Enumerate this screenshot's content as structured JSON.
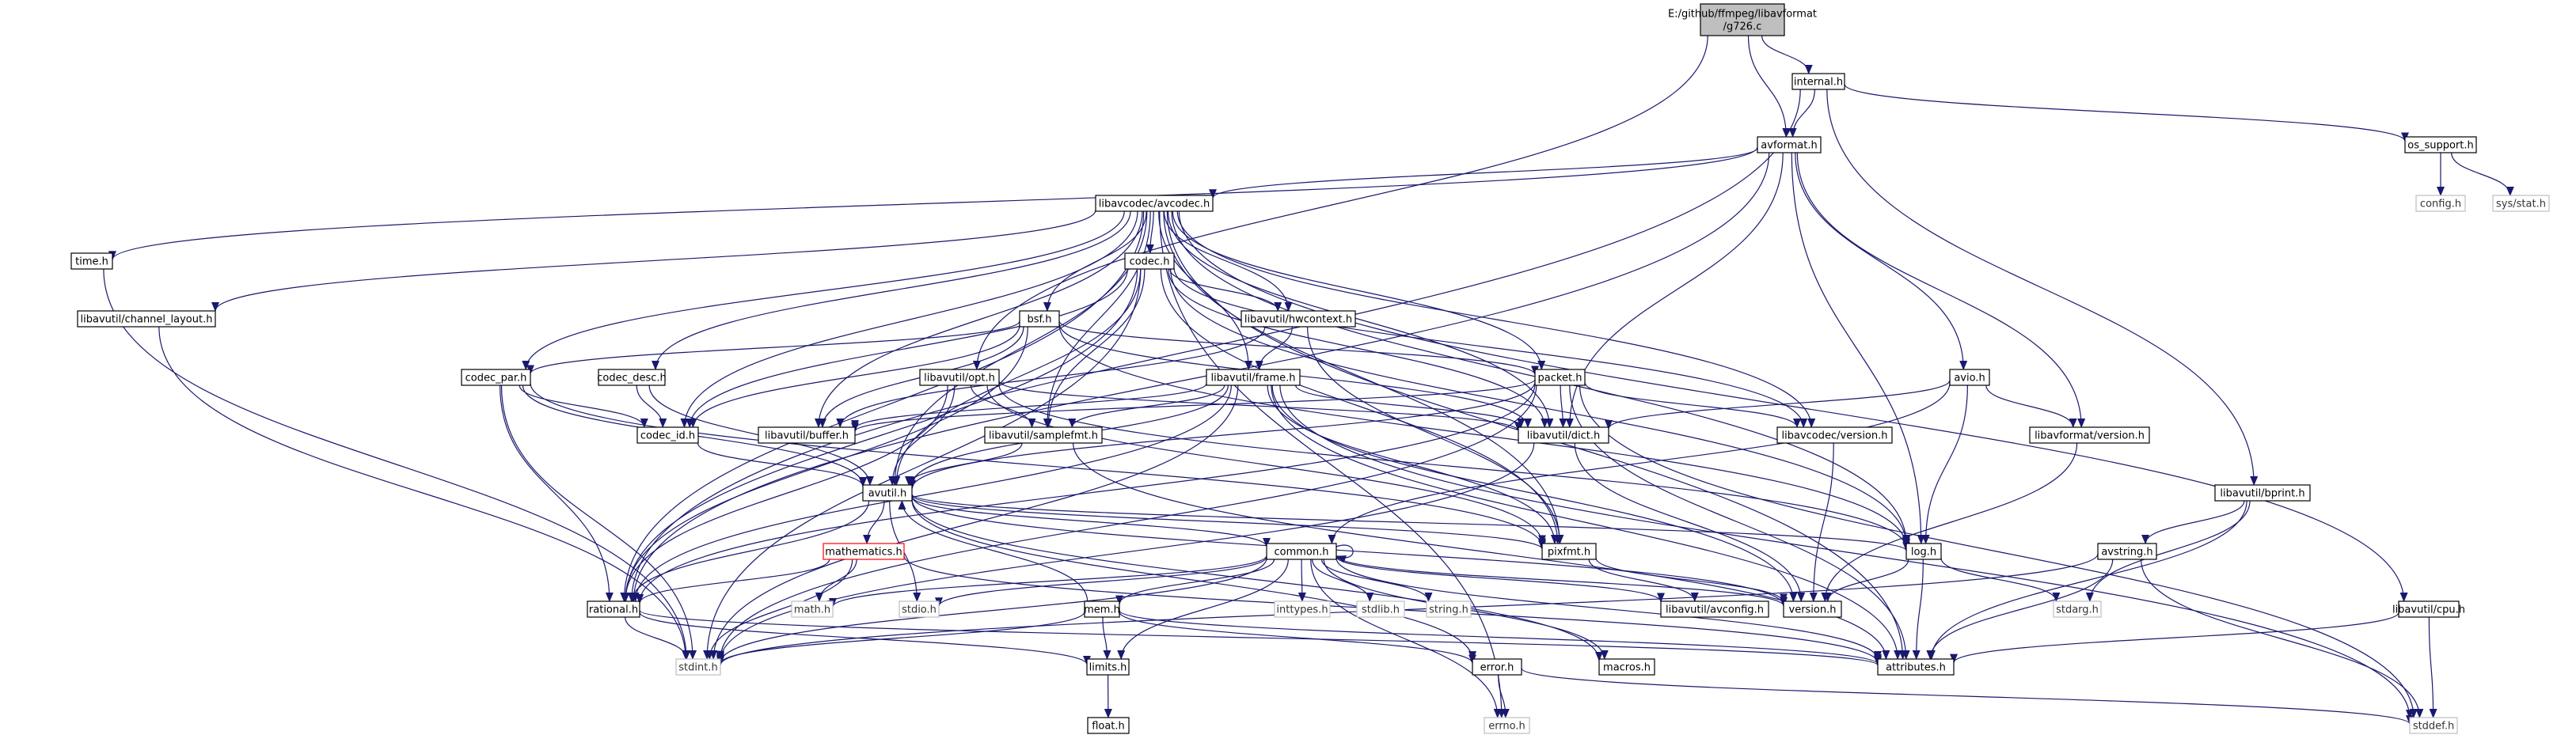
{
  "graph": {
    "nodes": [
      {
        "id": "root",
        "lines": [
          "E:/github/ffmpeg/libavformat",
          "/g726.c"
        ],
        "style": "root"
      },
      {
        "id": "internal",
        "lines": [
          "internal.h"
        ],
        "style": "normal"
      },
      {
        "id": "avformat",
        "lines": [
          "avformat.h"
        ],
        "style": "normal"
      },
      {
        "id": "os_support",
        "lines": [
          "os_support.h"
        ],
        "style": "normal"
      },
      {
        "id": "config",
        "lines": [
          "config.h"
        ],
        "style": "missing"
      },
      {
        "id": "sys_stat",
        "lines": [
          "sys/stat.h"
        ],
        "style": "missing"
      },
      {
        "id": "avcodec",
        "lines": [
          "libavcodec/avcodec.h"
        ],
        "style": "normal"
      },
      {
        "id": "time",
        "lines": [
          "time.h"
        ],
        "style": "normal"
      },
      {
        "id": "channel_layout",
        "lines": [
          "libavutil/channel_layout.h"
        ],
        "style": "normal"
      },
      {
        "id": "codec",
        "lines": [
          "codec.h"
        ],
        "style": "normal"
      },
      {
        "id": "bsf",
        "lines": [
          "bsf.h"
        ],
        "style": "normal"
      },
      {
        "id": "hwcontext",
        "lines": [
          "libavutil/hwcontext.h"
        ],
        "style": "normal"
      },
      {
        "id": "codec_par",
        "lines": [
          "codec_par.h"
        ],
        "style": "normal"
      },
      {
        "id": "codec_desc",
        "lines": [
          "codec_desc.h"
        ],
        "style": "normal"
      },
      {
        "id": "opt",
        "lines": [
          "libavutil/opt.h"
        ],
        "style": "normal"
      },
      {
        "id": "frame",
        "lines": [
          "libavutil/frame.h"
        ],
        "style": "normal"
      },
      {
        "id": "packet",
        "lines": [
          "packet.h"
        ],
        "style": "normal"
      },
      {
        "id": "avio",
        "lines": [
          "avio.h"
        ],
        "style": "normal"
      },
      {
        "id": "codec_id",
        "lines": [
          "codec_id.h"
        ],
        "style": "normal"
      },
      {
        "id": "buffer",
        "lines": [
          "libavutil/buffer.h"
        ],
        "style": "normal"
      },
      {
        "id": "samplefmt",
        "lines": [
          "libavutil/samplefmt.h"
        ],
        "style": "normal"
      },
      {
        "id": "dict",
        "lines": [
          "libavutil/dict.h"
        ],
        "style": "normal"
      },
      {
        "id": "avcodec_version",
        "lines": [
          "libavcodec/version.h"
        ],
        "style": "normal"
      },
      {
        "id": "avformat_version",
        "lines": [
          "libavformat/version.h"
        ],
        "style": "normal"
      },
      {
        "id": "avutil",
        "lines": [
          "avutil.h"
        ],
        "style": "normal"
      },
      {
        "id": "bprint",
        "lines": [
          "libavutil/bprint.h"
        ],
        "style": "normal"
      },
      {
        "id": "mathematics",
        "lines": [
          "mathematics.h"
        ],
        "style": "red"
      },
      {
        "id": "common",
        "lines": [
          "common.h"
        ],
        "style": "normal"
      },
      {
        "id": "pixfmt",
        "lines": [
          "pixfmt.h"
        ],
        "style": "normal"
      },
      {
        "id": "log",
        "lines": [
          "log.h"
        ],
        "style": "normal"
      },
      {
        "id": "avstring",
        "lines": [
          "avstring.h"
        ],
        "style": "normal"
      },
      {
        "id": "rational",
        "lines": [
          "rational.h"
        ],
        "style": "normal"
      },
      {
        "id": "math",
        "lines": [
          "math.h"
        ],
        "style": "missing"
      },
      {
        "id": "stdio",
        "lines": [
          "stdio.h"
        ],
        "style": "missing"
      },
      {
        "id": "mem",
        "lines": [
          "mem.h"
        ],
        "style": "normal"
      },
      {
        "id": "inttypes",
        "lines": [
          "inttypes.h"
        ],
        "style": "missing"
      },
      {
        "id": "stdlib",
        "lines": [
          "stdlib.h"
        ],
        "style": "missing"
      },
      {
        "id": "string",
        "lines": [
          "string.h"
        ],
        "style": "missing"
      },
      {
        "id": "avconfig",
        "lines": [
          "libavutil/avconfig.h"
        ],
        "style": "normal"
      },
      {
        "id": "version",
        "lines": [
          "version.h"
        ],
        "style": "normal"
      },
      {
        "id": "stdarg",
        "lines": [
          "stdarg.h"
        ],
        "style": "missing"
      },
      {
        "id": "cpu",
        "lines": [
          "libavutil/cpu.h"
        ],
        "style": "normal"
      },
      {
        "id": "stdint",
        "lines": [
          "stdint.h"
        ],
        "style": "missing"
      },
      {
        "id": "limits",
        "lines": [
          "limits.h"
        ],
        "style": "normal"
      },
      {
        "id": "error",
        "lines": [
          "error.h"
        ],
        "style": "normal"
      },
      {
        "id": "macros",
        "lines": [
          "macros.h"
        ],
        "style": "normal"
      },
      {
        "id": "attributes",
        "lines": [
          "attributes.h"
        ],
        "style": "normal"
      },
      {
        "id": "float",
        "lines": [
          "float.h"
        ],
        "style": "normal"
      },
      {
        "id": "errno",
        "lines": [
          "errno.h"
        ],
        "style": "missing"
      },
      {
        "id": "stddef",
        "lines": [
          "stddef.h"
        ],
        "style": "missing"
      }
    ],
    "edges": [
      [
        "root",
        "internal"
      ],
      [
        "root",
        "avformat"
      ],
      [
        "root",
        "opt"
      ],
      [
        "internal",
        "avformat"
      ],
      [
        "internal",
        "os_support"
      ],
      [
        "internal",
        "bprint"
      ],
      [
        "internal",
        "rational"
      ],
      [
        "os_support",
        "config"
      ],
      [
        "os_support",
        "sys_stat"
      ],
      [
        "avformat",
        "time"
      ],
      [
        "avformat",
        "avcodec"
      ],
      [
        "avformat",
        "avio"
      ],
      [
        "avformat",
        "avformat_version"
      ],
      [
        "avformat",
        "dict"
      ],
      [
        "avformat",
        "log"
      ],
      [
        "avformat",
        "rational"
      ],
      [
        "avcodec",
        "channel_layout"
      ],
      [
        "avcodec",
        "codec"
      ],
      [
        "avcodec",
        "bsf"
      ],
      [
        "avcodec",
        "hwcontext"
      ],
      [
        "avcodec",
        "codec_par"
      ],
      [
        "avcodec",
        "codec_desc"
      ],
      [
        "avcodec",
        "frame"
      ],
      [
        "avcodec",
        "packet"
      ],
      [
        "avcodec",
        "codec_id"
      ],
      [
        "avcodec",
        "buffer"
      ],
      [
        "avcodec",
        "samplefmt"
      ],
      [
        "avcodec",
        "dict"
      ],
      [
        "avcodec",
        "avcodec_version"
      ],
      [
        "avcodec",
        "avutil"
      ],
      [
        "avcodec",
        "log"
      ],
      [
        "avcodec",
        "pixfmt"
      ],
      [
        "avcodec",
        "rational"
      ],
      [
        "avcodec",
        "attributes"
      ],
      [
        "avcodec",
        "cpu"
      ],
      [
        "avcodec",
        "errno"
      ],
      [
        "time",
        "stdint"
      ],
      [
        "channel_layout",
        "stdint"
      ],
      [
        "codec",
        "hwcontext"
      ],
      [
        "codec",
        "codec_id"
      ],
      [
        "codec",
        "samplefmt"
      ],
      [
        "codec",
        "dict"
      ],
      [
        "codec",
        "log"
      ],
      [
        "codec",
        "pixfmt"
      ],
      [
        "codec",
        "rational"
      ],
      [
        "codec",
        "avcodec_version"
      ],
      [
        "codec",
        "stdint"
      ],
      [
        "codec",
        "avutil"
      ],
      [
        "bsf",
        "codec_par"
      ],
      [
        "bsf",
        "packet"
      ],
      [
        "bsf",
        "codec_id"
      ],
      [
        "bsf",
        "dict"
      ],
      [
        "bsf",
        "log"
      ],
      [
        "bsf",
        "rational"
      ],
      [
        "bsf",
        "buffer"
      ],
      [
        "hwcontext",
        "frame"
      ],
      [
        "hwcontext",
        "buffer"
      ],
      [
        "hwcontext",
        "pixfmt"
      ],
      [
        "codec_par",
        "codec_id"
      ],
      [
        "codec_par",
        "avutil"
      ],
      [
        "codec_par",
        "rational"
      ],
      [
        "codec_par",
        "pixfmt"
      ],
      [
        "codec_par",
        "stdint"
      ],
      [
        "codec_desc",
        "codec_id"
      ],
      [
        "codec_desc",
        "avutil"
      ],
      [
        "opt",
        "avutil"
      ],
      [
        "opt",
        "dict"
      ],
      [
        "opt",
        "log"
      ],
      [
        "opt",
        "pixfmt"
      ],
      [
        "opt",
        "rational"
      ],
      [
        "opt",
        "samplefmt"
      ],
      [
        "frame",
        "avutil"
      ],
      [
        "frame",
        "buffer"
      ],
      [
        "frame",
        "dict"
      ],
      [
        "frame",
        "rational"
      ],
      [
        "frame",
        "samplefmt"
      ],
      [
        "frame",
        "pixfmt"
      ],
      [
        "frame",
        "version"
      ],
      [
        "frame",
        "stdint"
      ],
      [
        "frame",
        "stddef"
      ],
      [
        "frame",
        "attributes"
      ],
      [
        "packet",
        "attributes"
      ],
      [
        "packet",
        "avutil"
      ],
      [
        "packet",
        "buffer"
      ],
      [
        "packet",
        "dict"
      ],
      [
        "packet",
        "rational"
      ],
      [
        "packet",
        "avcodec_version"
      ],
      [
        "packet",
        "stdint"
      ],
      [
        "packet",
        "stddef"
      ],
      [
        "avio",
        "common"
      ],
      [
        "avio",
        "dict"
      ],
      [
        "avio",
        "log"
      ],
      [
        "avio",
        "avformat_version"
      ],
      [
        "codec_id",
        "avutil"
      ],
      [
        "samplefmt",
        "avutil"
      ],
      [
        "samplefmt",
        "attributes"
      ],
      [
        "dict",
        "stdint"
      ],
      [
        "dict",
        "version"
      ],
      [
        "avcodec_version",
        "version"
      ],
      [
        "avformat_version",
        "version"
      ],
      [
        "avutil",
        "common"
      ],
      [
        "avutil",
        "error"
      ],
      [
        "avutil",
        "rational"
      ],
      [
        "avutil",
        "version"
      ],
      [
        "avutil",
        "macros"
      ],
      [
        "avutil",
        "mathematics"
      ],
      [
        "avutil",
        "log"
      ],
      [
        "avutil",
        "pixfmt"
      ],
      [
        "avutil",
        "stdio"
      ],
      [
        "bprint",
        "stdarg"
      ],
      [
        "bprint",
        "avstring"
      ],
      [
        "bprint",
        "attributes"
      ],
      [
        "mathematics",
        "stdint"
      ],
      [
        "mathematics",
        "math"
      ],
      [
        "mathematics",
        "attributes"
      ],
      [
        "mathematics",
        "rational"
      ],
      [
        "common",
        "errno"
      ],
      [
        "common",
        "inttypes"
      ],
      [
        "common",
        "limits"
      ],
      [
        "common",
        "math"
      ],
      [
        "common",
        "stdint"
      ],
      [
        "common",
        "stdio"
      ],
      [
        "common",
        "stdlib"
      ],
      [
        "common",
        "string"
      ],
      [
        "common",
        "attributes"
      ],
      [
        "common",
        "macros"
      ],
      [
        "common",
        "version"
      ],
      [
        "common",
        "avconfig"
      ],
      [
        "common",
        "mem"
      ],
      [
        "common",
        "common"
      ],
      [
        "pixfmt",
        "avconfig"
      ],
      [
        "pixfmt",
        "version"
      ],
      [
        "log",
        "stdarg"
      ],
      [
        "log",
        "attributes"
      ],
      [
        "log",
        "version"
      ],
      [
        "avstring",
        "stddef"
      ],
      [
        "avstring",
        "stdint"
      ],
      [
        "avstring",
        "attributes"
      ],
      [
        "rational",
        "stdint"
      ],
      [
        "rational",
        "limits"
      ],
      [
        "rational",
        "attributes"
      ],
      [
        "mem",
        "limits"
      ],
      [
        "mem",
        "stdint"
      ],
      [
        "mem",
        "attributes"
      ],
      [
        "mem",
        "error"
      ],
      [
        "mem",
        "avutil"
      ],
      [
        "cpu",
        "attributes"
      ],
      [
        "cpu",
        "stddef"
      ],
      [
        "limits",
        "float"
      ],
      [
        "error",
        "errno"
      ],
      [
        "error",
        "stddef"
      ]
    ]
  }
}
